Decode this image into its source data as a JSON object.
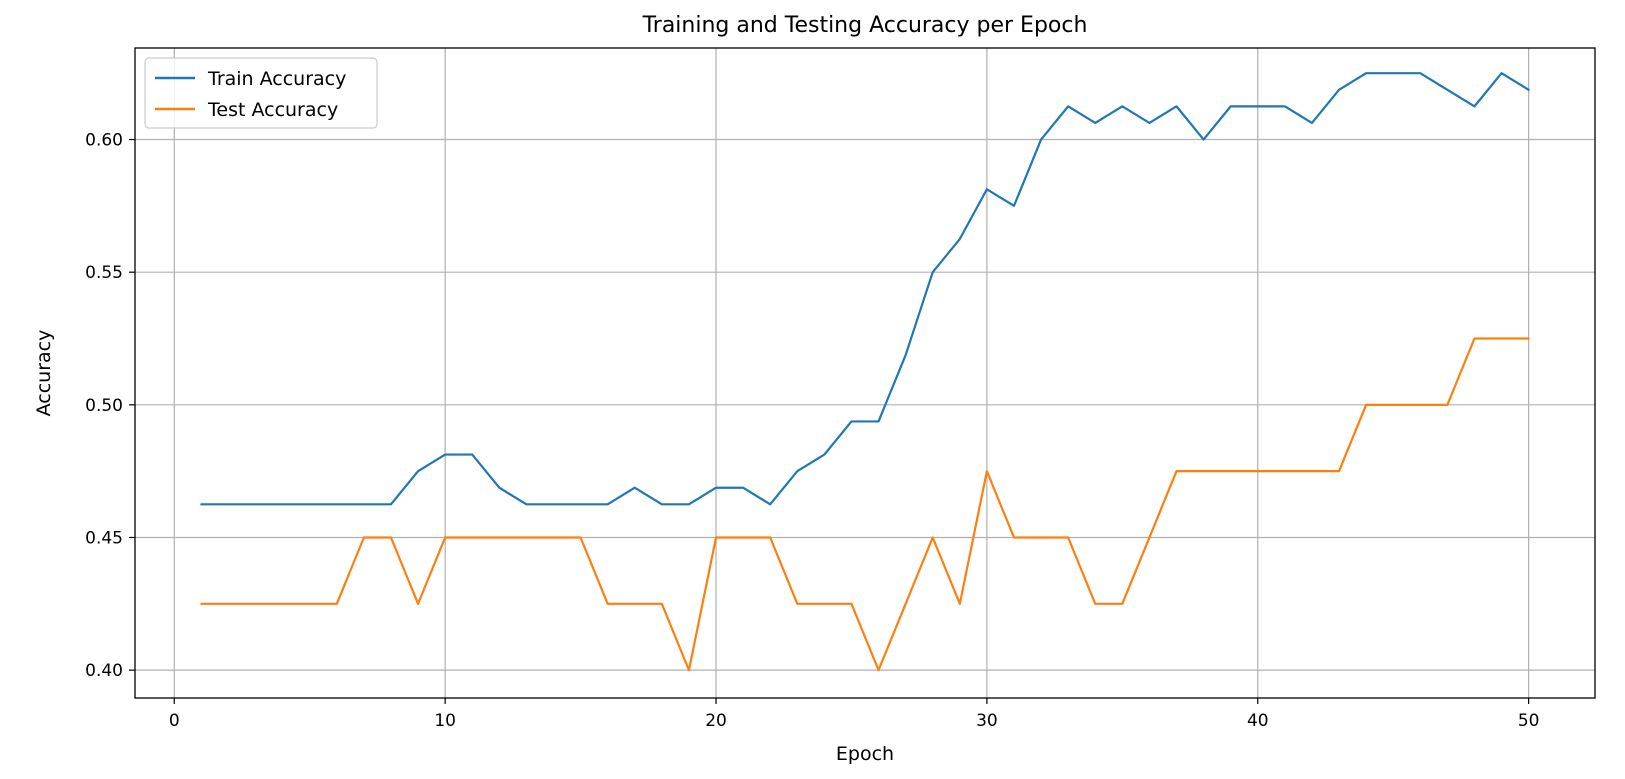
{
  "chart_data": {
    "type": "line",
    "title": "Training and Testing Accuracy per Epoch",
    "xlabel": "Epoch",
    "ylabel": "Accuracy",
    "xlim": [
      -1.45,
      52.45
    ],
    "ylim": [
      0.3895,
      0.6345
    ],
    "xticks": [
      0,
      10,
      20,
      30,
      40,
      50
    ],
    "yticks": [
      0.4,
      0.45,
      0.5,
      0.55,
      0.6
    ],
    "xtick_labels": [
      "0",
      "10",
      "20",
      "30",
      "40",
      "50"
    ],
    "ytick_labels": [
      "0.40",
      "0.45",
      "0.50",
      "0.55",
      "0.60"
    ],
    "grid": true,
    "legend_position": "top-left",
    "x": [
      1,
      2,
      3,
      4,
      5,
      6,
      7,
      8,
      9,
      10,
      11,
      12,
      13,
      14,
      15,
      16,
      17,
      18,
      19,
      20,
      21,
      22,
      23,
      24,
      25,
      26,
      27,
      28,
      29,
      30,
      31,
      32,
      33,
      34,
      35,
      36,
      37,
      38,
      39,
      40,
      41,
      42,
      43,
      44,
      45,
      46,
      47,
      48,
      49,
      50
    ],
    "series": [
      {
        "name": "Train Accuracy",
        "color": "#1f77b4",
        "values": [
          0.4625,
          0.4625,
          0.4625,
          0.4625,
          0.4625,
          0.4625,
          0.4625,
          0.4625,
          0.475,
          0.48125,
          0.48125,
          0.46875,
          0.4625,
          0.4625,
          0.4625,
          0.4625,
          0.46875,
          0.4625,
          0.4625,
          0.46875,
          0.46875,
          0.4625,
          0.475,
          0.48125,
          0.49375,
          0.49375,
          0.51875,
          0.55,
          0.5625,
          0.58125,
          0.575,
          0.6,
          0.6125,
          0.60625,
          0.6125,
          0.60625,
          0.6125,
          0.6,
          0.6125,
          0.6125,
          0.6125,
          0.60625,
          0.61875,
          0.625,
          0.625,
          0.625,
          0.61875,
          0.6125,
          0.625,
          0.61875
        ]
      },
      {
        "name": "Test Accuracy",
        "color": "#ff7f0e",
        "values": [
          0.425,
          0.425,
          0.425,
          0.425,
          0.425,
          0.425,
          0.45,
          0.45,
          0.425,
          0.45,
          0.45,
          0.45,
          0.45,
          0.45,
          0.45,
          0.425,
          0.425,
          0.425,
          0.4,
          0.45,
          0.45,
          0.45,
          0.425,
          0.425,
          0.425,
          0.4,
          0.425,
          0.45,
          0.425,
          0.475,
          0.45,
          0.45,
          0.45,
          0.425,
          0.425,
          0.45,
          0.475,
          0.475,
          0.475,
          0.475,
          0.475,
          0.475,
          0.475,
          0.5,
          0.5,
          0.5,
          0.5,
          0.525,
          0.525,
          0.525
        ]
      }
    ]
  }
}
